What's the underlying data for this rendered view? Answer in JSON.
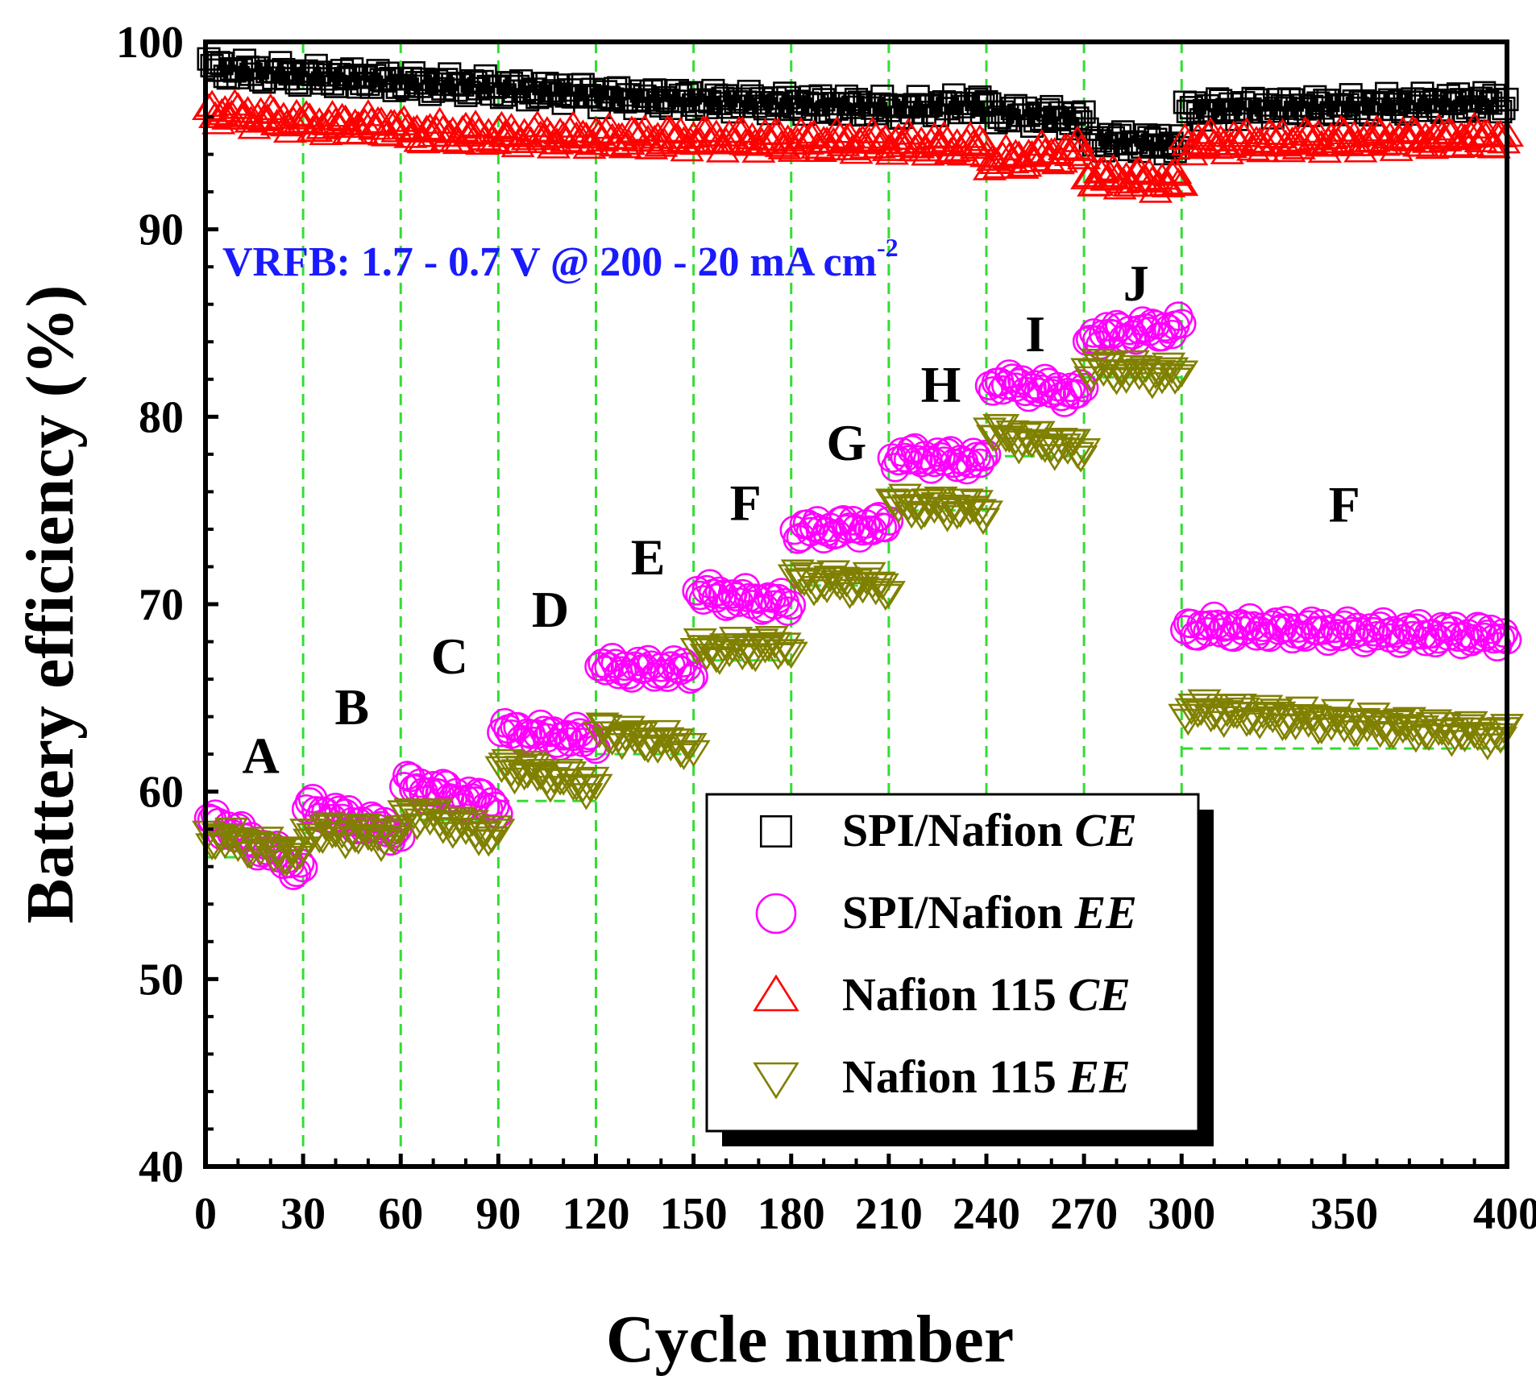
{
  "chart_data": {
    "type": "scatter",
    "title": "",
    "xlabel": "Cycle number",
    "ylabel": "Battery efficiency (%)",
    "xlim": [
      0,
      400
    ],
    "ylim": [
      40,
      100
    ],
    "x_ticks": [
      0,
      30,
      60,
      90,
      120,
      150,
      180,
      210,
      240,
      270,
      300,
      350,
      400
    ],
    "y_ticks": [
      40,
      50,
      60,
      70,
      80,
      90,
      100
    ],
    "annotation": {
      "text": "VRFB: 1.7 - 0.7 V @ 200 - 20 mA cm",
      "superscript": "-2",
      "color": "#1a1aff"
    },
    "segment_boundaries": [
      30,
      60,
      90,
      120,
      150,
      180,
      210,
      240,
      270,
      300
    ],
    "regions": [
      {
        "label": "A",
        "x_start": 0,
        "x_end": 30,
        "label_x": 17,
        "label_y": 61.0
      },
      {
        "label": "B",
        "x_start": 30,
        "x_end": 60,
        "label_x": 45,
        "label_y": 63.6
      },
      {
        "label": "C",
        "x_start": 60,
        "x_end": 90,
        "label_x": 75,
        "label_y": 66.3
      },
      {
        "label": "D",
        "x_start": 90,
        "x_end": 120,
        "label_x": 106,
        "label_y": 68.8
      },
      {
        "label": "E",
        "x_start": 120,
        "x_end": 150,
        "label_x": 136,
        "label_y": 71.6
      },
      {
        "label": "F",
        "x_start": 150,
        "x_end": 180,
        "label_x": 166,
        "label_y": 74.5
      },
      {
        "label": "G",
        "x_start": 180,
        "x_end": 210,
        "label_x": 197,
        "label_y": 77.7
      },
      {
        "label": "H",
        "x_start": 210,
        "x_end": 240,
        "label_x": 226,
        "label_y": 80.8
      },
      {
        "label": "I",
        "x_start": 240,
        "x_end": 270,
        "label_x": 255,
        "label_y": 83.5
      },
      {
        "label": "J",
        "x_start": 270,
        "x_end": 300,
        "label_x": 286,
        "label_y": 86.2
      },
      {
        "label": "F",
        "x_start": 300,
        "x_end": 400,
        "label_x": 350,
        "label_y": 74.4
      }
    ],
    "series": [
      {
        "name": "SPI/Nafion CE",
        "legend_label": "SPI/Nafion",
        "legend_suffix": "CE",
        "marker": "square",
        "color": "#000000",
        "segments": [
          {
            "x_start": 1,
            "x_end": 30,
            "start": 98.6,
            "end": 98.2
          },
          {
            "x_start": 31,
            "x_end": 60,
            "start": 98.2,
            "end": 97.9
          },
          {
            "x_start": 61,
            "x_end": 90,
            "start": 97.8,
            "end": 97.6
          },
          {
            "x_start": 91,
            "x_end": 120,
            "start": 97.5,
            "end": 97.2
          },
          {
            "x_start": 121,
            "x_end": 150,
            "start": 97.1,
            "end": 96.9
          },
          {
            "x_start": 151,
            "x_end": 180,
            "start": 96.9,
            "end": 96.7
          },
          {
            "x_start": 181,
            "x_end": 210,
            "start": 96.7,
            "end": 96.5
          },
          {
            "x_start": 211,
            "x_end": 240,
            "start": 96.4,
            "end": 96.7
          },
          {
            "x_start": 241,
            "x_end": 270,
            "start": 96.2,
            "end": 95.9
          },
          {
            "x_start": 271,
            "x_end": 300,
            "start": 94.8,
            "end": 94.5
          },
          {
            "x_start": 301,
            "x_end": 400,
            "start": 96.4,
            "end": 96.8
          }
        ]
      },
      {
        "name": "SPI/Nafion EE",
        "legend_label": "SPI/Nafion",
        "legend_suffix": "EE",
        "marker": "circle",
        "color": "#ff00ff",
        "segments": [
          {
            "x_start": 1,
            "x_end": 30,
            "start": 58.6,
            "end": 55.8
          },
          {
            "x_start": 31,
            "x_end": 60,
            "start": 59.2,
            "end": 57.8
          },
          {
            "x_start": 61,
            "x_end": 90,
            "start": 60.4,
            "end": 59.3
          },
          {
            "x_start": 91,
            "x_end": 120,
            "start": 63.2,
            "end": 62.8
          },
          {
            "x_start": 121,
            "x_end": 150,
            "start": 66.6,
            "end": 66.5
          },
          {
            "x_start": 151,
            "x_end": 180,
            "start": 70.6,
            "end": 70.0
          },
          {
            "x_start": 181,
            "x_end": 210,
            "start": 73.9,
            "end": 74.2
          },
          {
            "x_start": 211,
            "x_end": 240,
            "start": 77.9,
            "end": 77.6
          },
          {
            "x_start": 241,
            "x_end": 270,
            "start": 81.9,
            "end": 81.2
          },
          {
            "x_start": 271,
            "x_end": 300,
            "start": 84.3,
            "end": 84.8
          },
          {
            "x_start": 301,
            "x_end": 400,
            "start": 68.8,
            "end": 68.3
          }
        ]
      },
      {
        "name": "Nafion 115 CE",
        "legend_label": "Nafion 115",
        "legend_suffix": "CE",
        "marker": "triangle-up",
        "color": "#ff0000",
        "segments": [
          {
            "x_start": 1,
            "x_end": 30,
            "start": 96.3,
            "end": 95.7
          },
          {
            "x_start": 31,
            "x_end": 60,
            "start": 95.6,
            "end": 95.5
          },
          {
            "x_start": 61,
            "x_end": 90,
            "start": 95.2,
            "end": 95.0
          },
          {
            "x_start": 91,
            "x_end": 120,
            "start": 95.0,
            "end": 94.9
          },
          {
            "x_start": 121,
            "x_end": 150,
            "start": 94.9,
            "end": 94.8
          },
          {
            "x_start": 151,
            "x_end": 180,
            "start": 94.8,
            "end": 94.7
          },
          {
            "x_start": 181,
            "x_end": 210,
            "start": 94.7,
            "end": 94.6
          },
          {
            "x_start": 211,
            "x_end": 240,
            "start": 94.6,
            "end": 94.4
          },
          {
            "x_start": 241,
            "x_end": 270,
            "start": 93.6,
            "end": 94.2
          },
          {
            "x_start": 271,
            "x_end": 300,
            "start": 92.8,
            "end": 92.5
          },
          {
            "x_start": 301,
            "x_end": 400,
            "start": 94.6,
            "end": 94.9
          }
        ]
      },
      {
        "name": "Nafion 115 EE",
        "legend_label": "Nafion 115",
        "legend_suffix": "EE",
        "marker": "triangle-down",
        "color": "#808000",
        "segments": [
          {
            "x_start": 1,
            "x_end": 30,
            "start": 57.7,
            "end": 56.5
          },
          {
            "x_start": 31,
            "x_end": 60,
            "start": 57.9,
            "end": 57.6
          },
          {
            "x_start": 61,
            "x_end": 90,
            "start": 59.0,
            "end": 57.6
          },
          {
            "x_start": 91,
            "x_end": 120,
            "start": 61.4,
            "end": 60.3
          },
          {
            "x_start": 121,
            "x_end": 150,
            "start": 63.2,
            "end": 62.4
          },
          {
            "x_start": 151,
            "x_end": 180,
            "start": 67.5,
            "end": 67.8
          },
          {
            "x_start": 181,
            "x_end": 210,
            "start": 71.3,
            "end": 71.0
          },
          {
            "x_start": 211,
            "x_end": 240,
            "start": 75.3,
            "end": 75.1
          },
          {
            "x_start": 241,
            "x_end": 270,
            "start": 79.2,
            "end": 78.2
          },
          {
            "x_start": 271,
            "x_end": 300,
            "start": 82.6,
            "end": 82.2
          },
          {
            "x_start": 301,
            "x_end": 400,
            "start": 64.4,
            "end": 63.0
          }
        ]
      }
    ],
    "reference_lines": {
      "color": "#33dd33",
      "steps": [
        {
          "x_start": 0,
          "x_end": 30,
          "y": 56.5
        },
        {
          "x_start": 30,
          "x_end": 60,
          "y": 57.8
        },
        {
          "x_start": 60,
          "x_end": 90,
          "y": 58.5
        },
        {
          "x_start": 90,
          "x_end": 120,
          "y": 59.5
        },
        {
          "x_start": 120,
          "x_end": 150,
          "y": 62.0
        },
        {
          "x_start": 150,
          "x_end": 180,
          "y": 67.0
        },
        {
          "x_start": 180,
          "x_end": 210,
          "y": 71.0
        },
        {
          "x_start": 210,
          "x_end": 240,
          "y": 75.0
        },
        {
          "x_start": 240,
          "x_end": 270,
          "y": 77.9
        },
        {
          "x_start": 270,
          "x_end": 300,
          "y": 82.1
        },
        {
          "x_start": 300,
          "x_end": 400,
          "y": 62.3
        }
      ]
    },
    "legend_position": "bottom-right"
  }
}
